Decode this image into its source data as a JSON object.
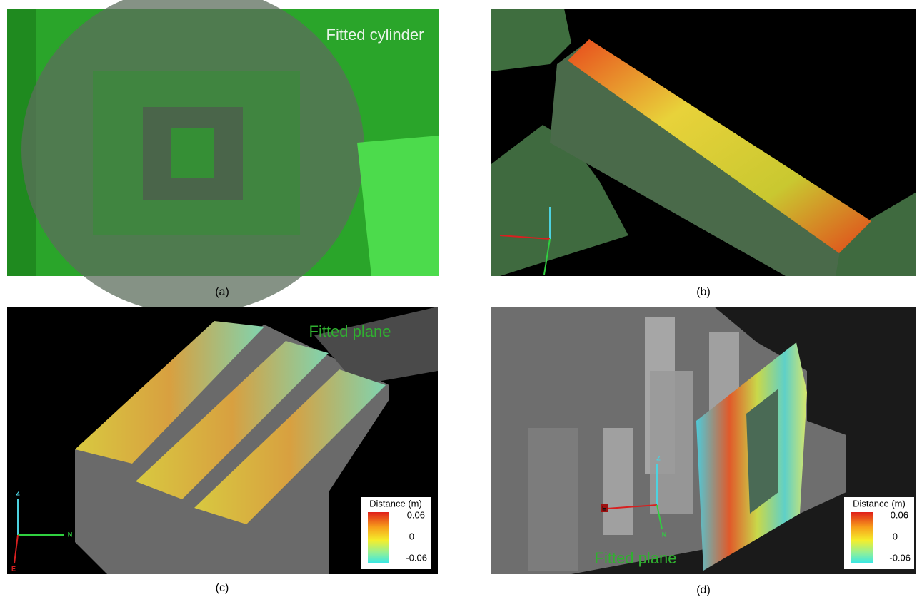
{
  "panels": [
    {
      "caption": "(a)",
      "label": "Fitted cylinder"
    },
    {
      "caption": "(b)"
    },
    {
      "caption": "(c)",
      "label": "Fitted plane",
      "axes": [
        "Z",
        "N",
        "E"
      ],
      "legend": {
        "title": "Distance (m)",
        "ticks": [
          "0.06",
          "0",
          "-0.06"
        ]
      }
    },
    {
      "caption": "(d)",
      "label": "Fitted plane",
      "axes": [
        "Z",
        "N",
        "E"
      ],
      "legend": {
        "title": "Distance (m)",
        "ticks": [
          "0.06",
          "0",
          "-0.06"
        ]
      }
    }
  ]
}
